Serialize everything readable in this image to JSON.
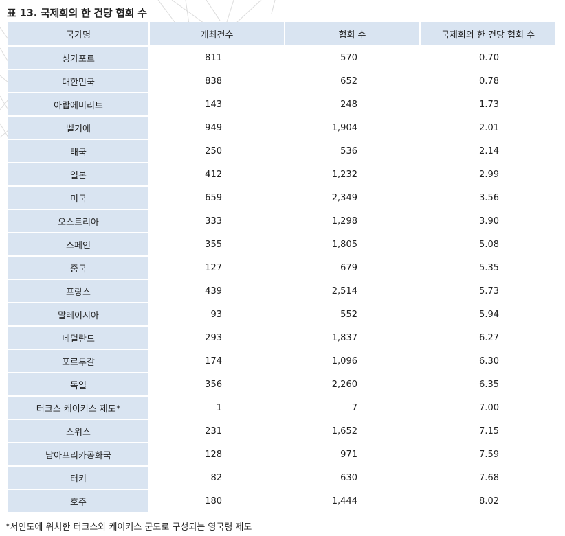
{
  "caption": "표 13. 국제회의 한 건당 협회 수",
  "columns": [
    "국가명",
    "개최건수",
    "협회 수",
    "국제회의 한 건당 협회 수"
  ],
  "rows": [
    {
      "country": "싱가포르",
      "meetings": "811",
      "associations": "570",
      "ratio": "0.70"
    },
    {
      "country": "대한민국",
      "meetings": "838",
      "associations": "652",
      "ratio": "0.78"
    },
    {
      "country": "아랍에미리트",
      "meetings": "143",
      "associations": "248",
      "ratio": "1.73"
    },
    {
      "country": "벨기에",
      "meetings": "949",
      "associations": "1,904",
      "ratio": "2.01"
    },
    {
      "country": "태국",
      "meetings": "250",
      "associations": "536",
      "ratio": "2.14"
    },
    {
      "country": "일본",
      "meetings": "412",
      "associations": "1,232",
      "ratio": "2.99"
    },
    {
      "country": "미국",
      "meetings": "659",
      "associations": "2,349",
      "ratio": "3.56"
    },
    {
      "country": "오스트리아",
      "meetings": "333",
      "associations": "1,298",
      "ratio": "3.90"
    },
    {
      "country": "스페인",
      "meetings": "355",
      "associations": "1,805",
      "ratio": "5.08"
    },
    {
      "country": "중국",
      "meetings": "127",
      "associations": "679",
      "ratio": "5.35"
    },
    {
      "country": "프랑스",
      "meetings": "439",
      "associations": "2,514",
      "ratio": "5.73"
    },
    {
      "country": "말레이시아",
      "meetings": "93",
      "associations": "552",
      "ratio": "5.94"
    },
    {
      "country": "네덜란드",
      "meetings": "293",
      "associations": "1,837",
      "ratio": "6.27"
    },
    {
      "country": "포르투갈",
      "meetings": "174",
      "associations": "1,096",
      "ratio": "6.30"
    },
    {
      "country": "독일",
      "meetings": "356",
      "associations": "2,260",
      "ratio": "6.35"
    },
    {
      "country": "터크스 케이커스 제도*",
      "meetings": "1",
      "associations": "7",
      "ratio": "7.00"
    },
    {
      "country": "스위스",
      "meetings": "231",
      "associations": "1,652",
      "ratio": "7.15"
    },
    {
      "country": "남아프리카공화국",
      "meetings": "128",
      "associations": "971",
      "ratio": "7.59"
    },
    {
      "country": "터키",
      "meetings": "82",
      "associations": "630",
      "ratio": "7.68"
    },
    {
      "country": "호주",
      "meetings": "180",
      "associations": "1,444",
      "ratio": "8.02"
    }
  ],
  "footnote": "*서인도에 위치한 터크스와 케이커스 군도로 구성되는 영국령 제도",
  "colors": {
    "header_bg": "#d9e4f1",
    "label_bg": "#d9e4f1",
    "text": "#222222",
    "decoration_line": "#dcdcdc"
  }
}
